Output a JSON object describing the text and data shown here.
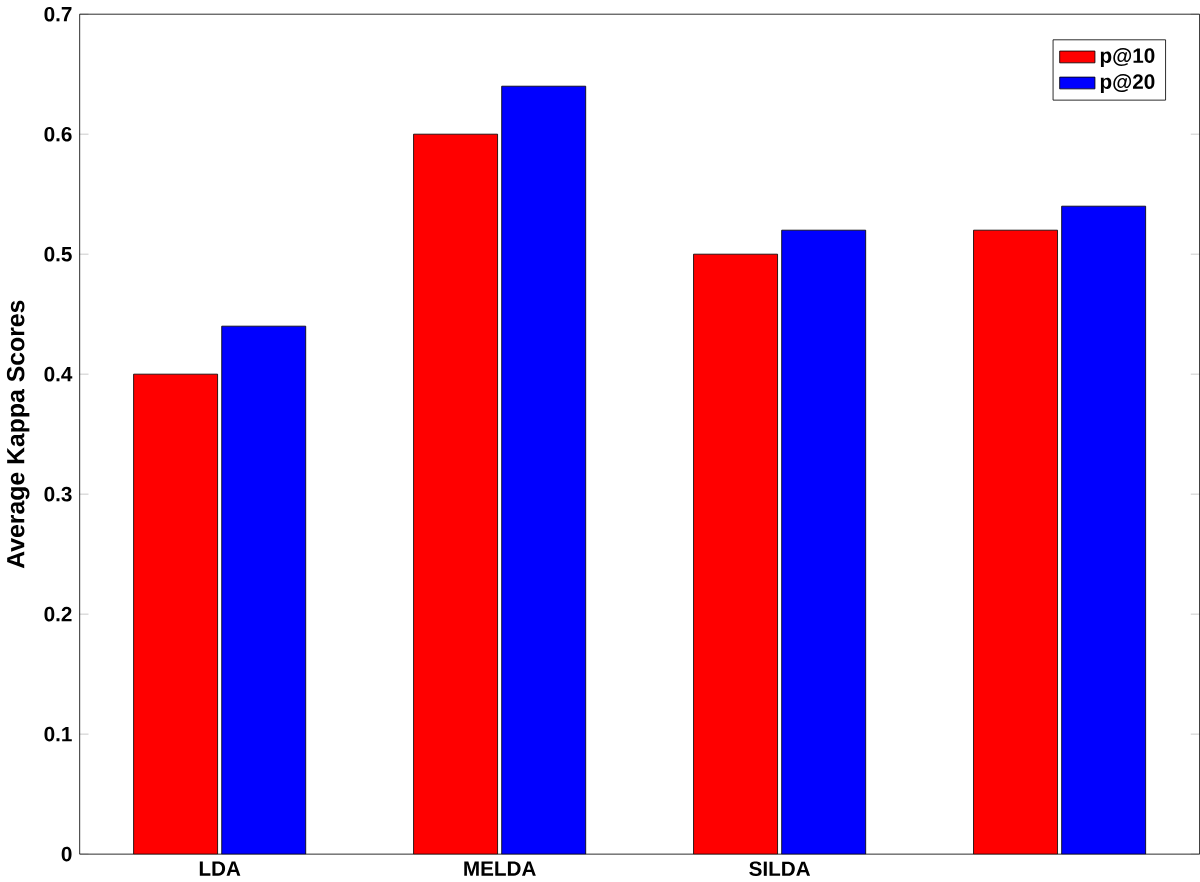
{
  "chart_data": {
    "type": "bar",
    "ylabel": "Average Kappa Scores",
    "categories": [
      "LDA",
      "MELDA",
      "SILDA",
      null
    ],
    "series": [
      {
        "name": "p@10",
        "color": "#ff0000",
        "values": [
          0.4,
          0.6,
          0.5,
          0.52
        ]
      },
      {
        "name": "p@20",
        "color": "#0000ff",
        "values": [
          0.44,
          0.64,
          0.52,
          0.54
        ]
      }
    ],
    "ylim": [
      0,
      0.7
    ],
    "yticks": [
      0,
      0.1,
      0.2,
      0.3,
      0.4,
      0.5,
      0.6,
      0.7
    ],
    "legend": "top right"
  }
}
